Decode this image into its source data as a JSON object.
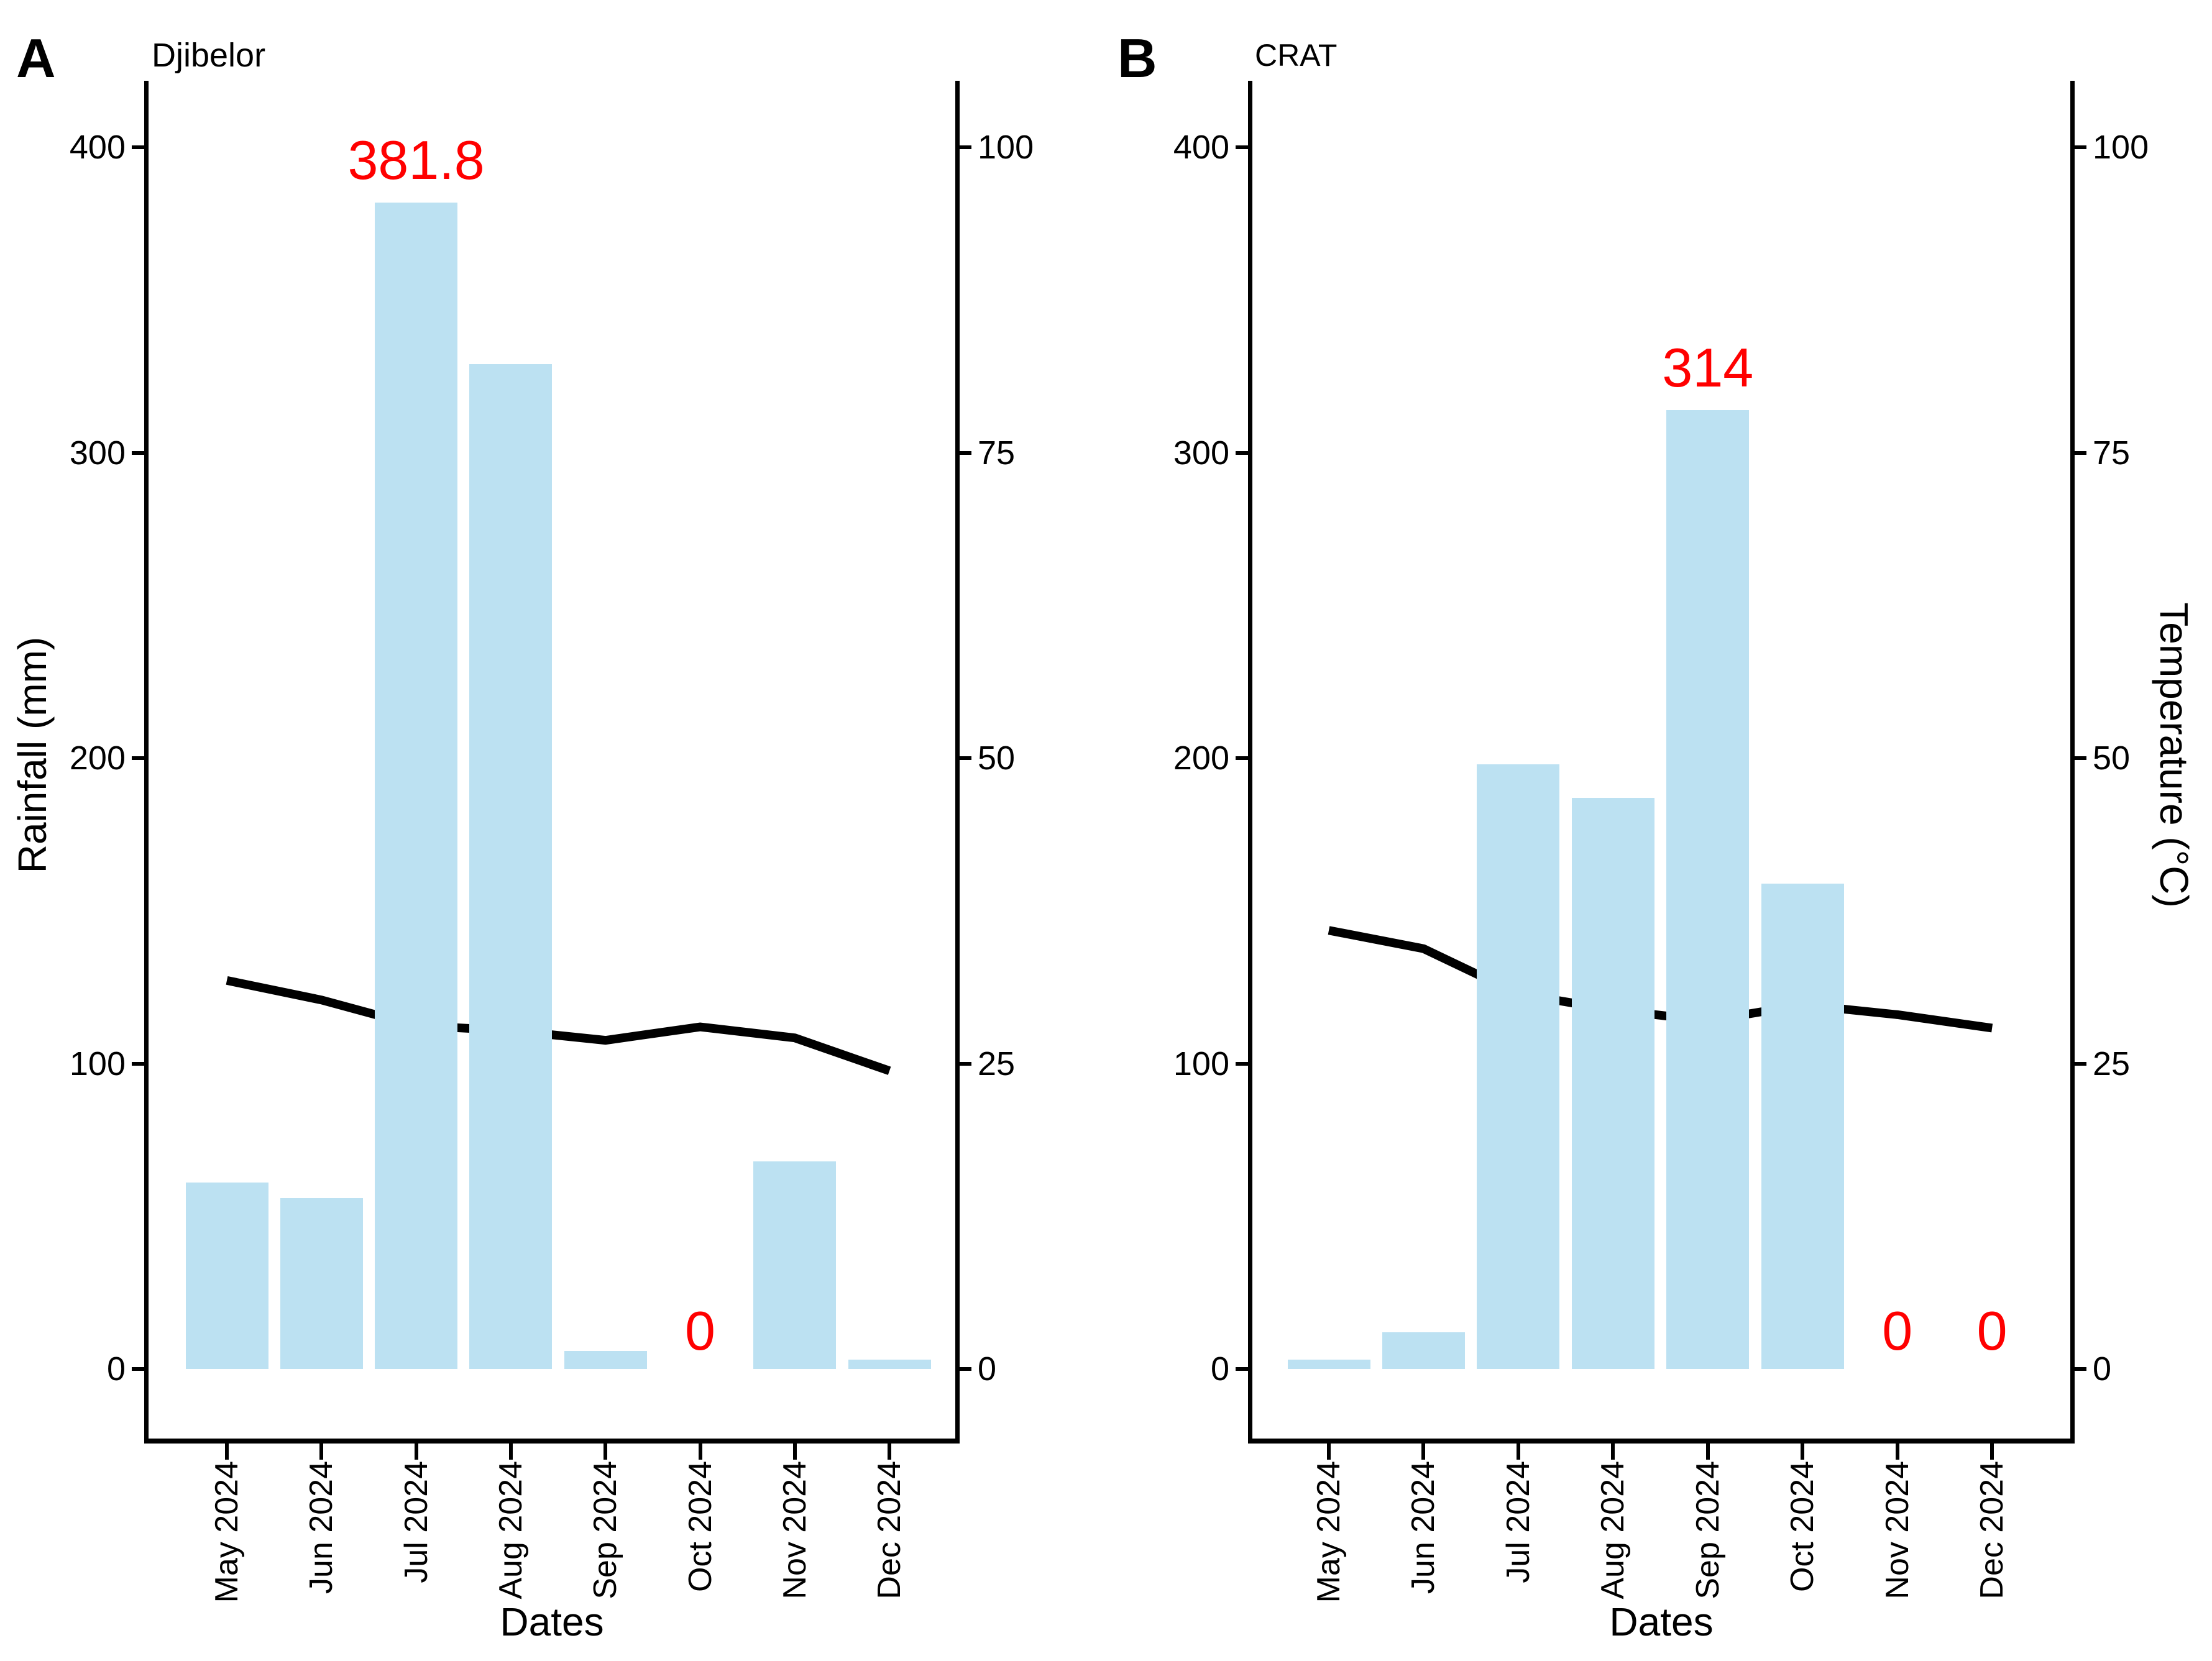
{
  "chart_data": [
    {
      "type": "bar+line",
      "panel_label": "A",
      "title": "Djibelor",
      "xlabel": "Dates",
      "ylabel_left": "Rainfall (mm)",
      "ylabel_right": "Temperature (°C)",
      "categories": [
        "May 2024",
        "Jun 2024",
        "Jul 2024",
        "Aug 2024",
        "Sep 2024",
        "Oct 2024",
        "Nov 2024",
        "Dec 2024"
      ],
      "series": [
        {
          "name": "Rainfall (mm)",
          "type": "bar",
          "axis": "left",
          "values": [
            61,
            56,
            381.8,
            329,
            6,
            0,
            68,
            3
          ]
        },
        {
          "name": "Temperature (°C)",
          "type": "line",
          "axis": "right",
          "values": [
            31.8,
            30.2,
            28.1,
            27.7,
            26.9,
            28.0,
            27.1,
            24.4
          ]
        }
      ],
      "annotations": [
        {
          "index": 2,
          "text": "381.8"
        },
        {
          "index": 5,
          "text": "0"
        }
      ],
      "ylim_left": [
        0,
        400
      ],
      "ylim_right": [
        0,
        100
      ],
      "yticks_left": [
        0,
        100,
        200,
        300,
        400
      ],
      "yticks_right": [
        0,
        25,
        50,
        75,
        100
      ],
      "grid": false,
      "legend": "none"
    },
    {
      "type": "bar+line",
      "panel_label": "B",
      "title": "CRAT",
      "xlabel": "Dates",
      "ylabel_left": "Rainfall (mm)",
      "ylabel_right": "Temperature (°C)",
      "categories": [
        "May 2024",
        "Jun 2024",
        "Jul 2024",
        "Aug 2024",
        "Sep 2024",
        "Oct 2024",
        "Nov 2024",
        "Dec 2024"
      ],
      "series": [
        {
          "name": "Rainfall (mm)",
          "type": "bar",
          "axis": "left",
          "values": [
            3,
            12,
            198,
            187,
            314,
            159,
            0,
            0
          ]
        },
        {
          "name": "Temperature (°C)",
          "type": "line",
          "axis": "right",
          "values": [
            35.9,
            34.4,
            30.7,
            29.4,
            28.5,
            29.8,
            29.0,
            27.9
          ]
        }
      ],
      "annotations": [
        {
          "index": 4,
          "text": "314"
        },
        {
          "index": 6,
          "text": "0"
        },
        {
          "index": 7,
          "text": "0"
        }
      ],
      "ylim_left": [
        0,
        400
      ],
      "ylim_right": [
        0,
        100
      ],
      "yticks_left": [
        0,
        100,
        200,
        300,
        400
      ],
      "yticks_right": [
        0,
        25,
        50,
        75,
        100
      ],
      "grid": false,
      "legend": "none"
    }
  ],
  "styles": {
    "bar_color": "#BCE1F2",
    "line_color": "#000000",
    "annotation_color": "#FF0000",
    "axis_color": "#000000",
    "text_color": "#000000",
    "background": "#FFFFFF"
  }
}
